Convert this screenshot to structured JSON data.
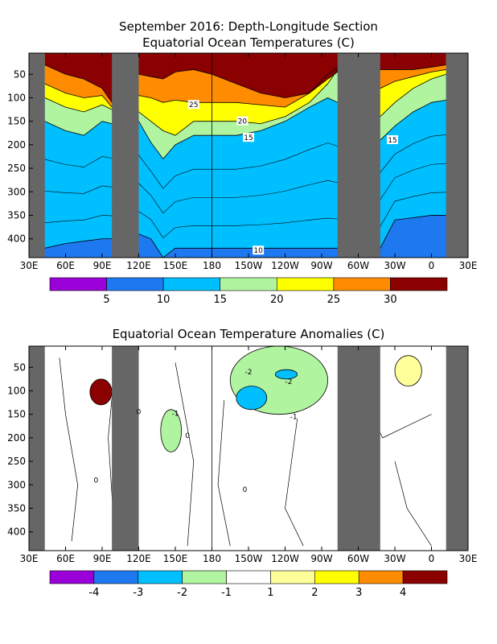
{
  "chart_data": [
    {
      "type": "heatmap",
      "title": "September 2016: Depth-Longitude Section",
      "subtitle": "Equatorial Ocean Temperatures (C)",
      "x_ticks": [
        "30E",
        "60E",
        "90E",
        "120E",
        "150E",
        "180",
        "150W",
        "120W",
        "90W",
        "60W",
        "30W",
        "0",
        "30E"
      ],
      "y_ticks": [
        50,
        100,
        150,
        200,
        250,
        300,
        350,
        400
      ],
      "xlim_deg_east": [
        30,
        390
      ],
      "ylim_depth_m": [
        440,
        5
      ],
      "land_bands_deg_east": [
        [
          30,
          43
        ],
        [
          98,
          120
        ],
        [
          283,
          318
        ],
        [
          372,
          390
        ]
      ],
      "colorbar": {
        "colors": [
          "#9a00d8",
          "#1e78f0",
          "#00bfff",
          "#b0f4a0",
          "#ffff00",
          "#ff8c00",
          "#8b0000"
        ],
        "labels": [
          "5",
          "10",
          "15",
          "20",
          "25",
          "30"
        ]
      },
      "contour_labels": [
        "25",
        "20",
        "15",
        "15",
        "10"
      ],
      "isotherm_depths_m": {
        "lon_deg_east": [
          43,
          60,
          75,
          90,
          98,
          120,
          130,
          140,
          150,
          165,
          180,
          200,
          220,
          240,
          260,
          275,
          283,
          318,
          330,
          345,
          360,
          372
        ],
        "27": [
          30,
          50,
          60,
          80,
          110,
          50,
          55,
          60,
          45,
          40,
          50,
          70,
          90,
          100,
          90,
          60,
          45,
          40,
          40,
          40,
          35,
          30
        ],
        "25": [
          70,
          90,
          100,
          95,
          120,
          95,
          100,
          110,
          105,
          110,
          110,
          110,
          115,
          120,
          90,
          50,
          35,
          80,
          65,
          55,
          45,
          40
        ],
        "20": [
          100,
          120,
          130,
          115,
          125,
          130,
          150,
          170,
          180,
          150,
          150,
          150,
          155,
          140,
          110,
          70,
          40,
          140,
          110,
          80,
          60,
          50
        ],
        "15": [
          150,
          170,
          180,
          150,
          155,
          150,
          195,
          230,
          200,
          180,
          180,
          180,
          170,
          150,
          120,
          100,
          110,
          190,
          160,
          130,
          110,
          105
        ],
        "10": [
          420,
          410,
          405,
          400,
          400,
          390,
          400,
          440,
          420,
          420,
          420,
          420,
          420,
          420,
          420,
          420,
          420,
          420,
          360,
          355,
          350,
          350
        ]
      }
    },
    {
      "type": "heatmap",
      "title": "Equatorial Ocean Temperature Anomalies (C)",
      "x_ticks": [
        "30E",
        "60E",
        "90E",
        "120E",
        "150E",
        "180",
        "150W",
        "120W",
        "90W",
        "60W",
        "30W",
        "0",
        "30E"
      ],
      "y_ticks": [
        50,
        100,
        150,
        200,
        250,
        300,
        350,
        400
      ],
      "xlim_deg_east": [
        30,
        390
      ],
      "ylim_depth_m": [
        440,
        5
      ],
      "land_bands_deg_east": [
        [
          30,
          43
        ],
        [
          98,
          120
        ],
        [
          283,
          318
        ],
        [
          372,
          390
        ]
      ],
      "colorbar": {
        "colors": [
          "#9a00d8",
          "#1e78f0",
          "#00bfff",
          "#b0f4a0",
          "#ffffff",
          "#ffff99",
          "#ffff00",
          "#ff8c00",
          "#8b0000"
        ],
        "labels": [
          "-4",
          "-3",
          "-2",
          "-1",
          "1",
          "2",
          "3",
          "4"
        ]
      },
      "contour_labels": [
        "-2",
        "-2",
        "-1",
        "-1",
        "0",
        "0",
        "0",
        "0"
      ],
      "anomaly_regions": [
        {
          "level": 4,
          "lon": [
            80,
            98
          ],
          "depth": [
            75,
            130
          ]
        },
        {
          "level": -1,
          "lon": [
            195,
            275
          ],
          "depth": [
            5,
            150
          ]
        },
        {
          "level": -2,
          "lon": [
            200,
            225
          ],
          "depth": [
            90,
            140
          ]
        },
        {
          "level": -2,
          "lon": [
            232,
            250
          ],
          "depth": [
            55,
            75
          ]
        },
        {
          "level": -1,
          "lon": [
            138,
            155
          ],
          "depth": [
            140,
            230
          ]
        },
        {
          "level": 1,
          "lon": [
            330,
            352
          ],
          "depth": [
            25,
            90
          ]
        }
      ]
    }
  ]
}
